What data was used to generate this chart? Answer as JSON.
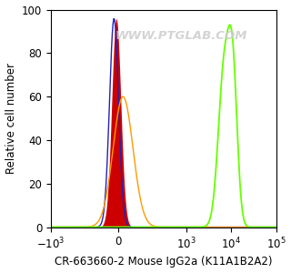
{
  "xlabel": "CR-663660-2 Mouse IgG2a (K11A1B2A2)",
  "ylabel": "Relative cell number",
  "ylim": [
    0,
    100
  ],
  "yticks": [
    0,
    20,
    40,
    60,
    80,
    100
  ],
  "watermark": "WWW.PTGLAB.COM",
  "bg_color": "#ffffff",
  "plot_bg_color": "#ffffff",
  "blue_color": "#2222bb",
  "orange_color": "#ff9900",
  "red_color": "#cc0000",
  "green_color": "#66ff00",
  "xlabel_fontsize": 8.5,
  "ylabel_fontsize": 8.5,
  "tick_fontsize": 8.5,
  "linthresh": 100,
  "linscale": 0.45
}
